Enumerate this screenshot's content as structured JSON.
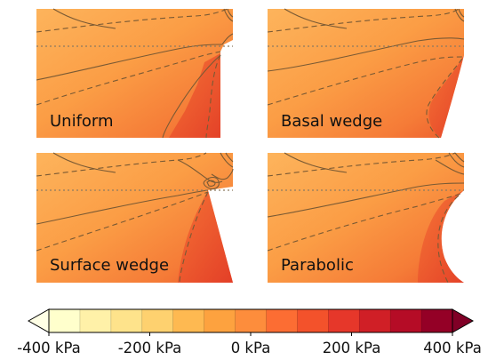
{
  "panels": [
    {
      "label": "Uniform",
      "geometry": "uniform"
    },
    {
      "label": "Basal wedge",
      "geometry": "basal-wedge"
    },
    {
      "label": "Surface wedge",
      "geometry": "surface-wedge"
    },
    {
      "label": "Parabolic",
      "geometry": "parabolic"
    }
  ],
  "colorbar": {
    "min": -400,
    "max": 400,
    "ticks": [
      "-400 kPa",
      "-200 kPa",
      "0 kPa",
      "200 kPa",
      "400 kPa"
    ],
    "colors": [
      "#ffffcc",
      "#fff1a8",
      "#fee38b",
      "#fed16f",
      "#feb951",
      "#fda23f",
      "#fd8d3c",
      "#fc6d33",
      "#f3522b",
      "#e6372a",
      "#d01f26",
      "#b50c26",
      "#940026"
    ],
    "extend_min_color": "#ffffe5",
    "extend_max_color": "#800026"
  },
  "colors": {
    "background": "#ffffff",
    "field_orange": "#fba24a",
    "field_dark": "#eb4a2b",
    "contour": "#7a5a34",
    "reference_line": "#8c7a60"
  }
}
